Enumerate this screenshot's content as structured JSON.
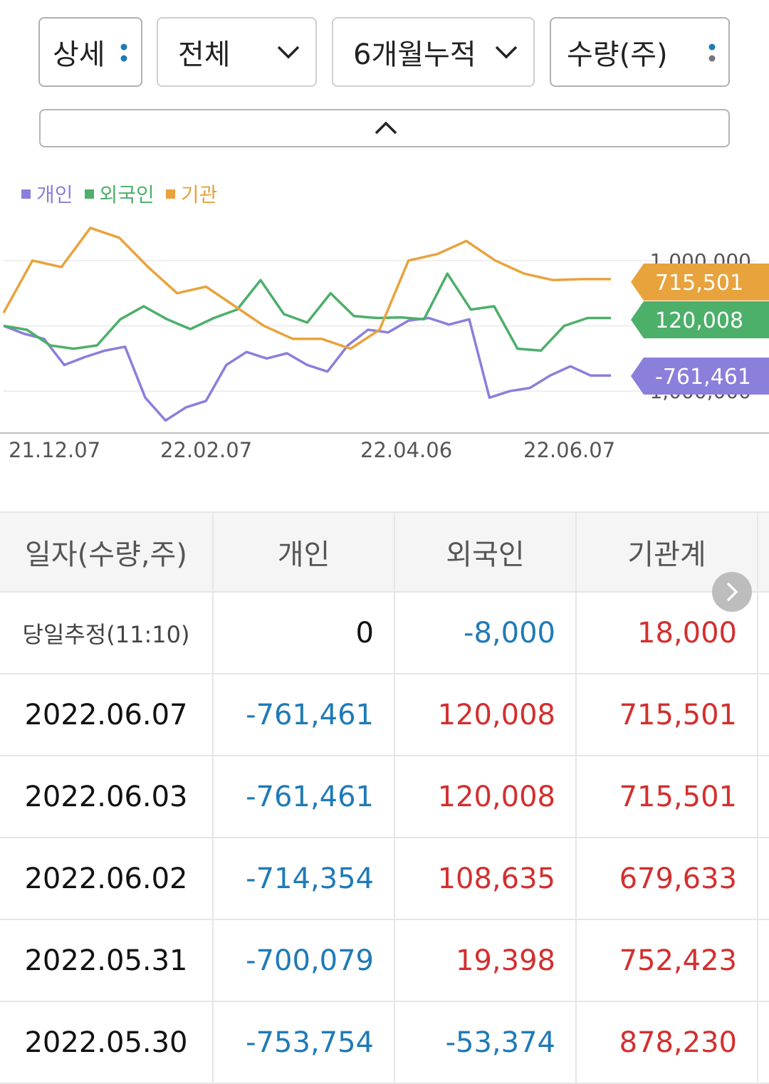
{
  "filters": {
    "detail": {
      "label": "상세",
      "icon": "dots-vertical-icon"
    },
    "scope": {
      "label": "전체",
      "icon": "chevron-down-icon"
    },
    "period": {
      "label": "6개월누적",
      "icon": "chevron-down-icon"
    },
    "unit": {
      "label": "수량(주)",
      "icon": "dots-vertical-icon"
    },
    "collapse_icon": "chevron-up-icon"
  },
  "colors": {
    "individual": "#8a7fdb",
    "foreign": "#4caf6a",
    "institution": "#e8a33d",
    "positive": "#d32f2f",
    "negative": "#1f7ab8",
    "neutral": "#111111"
  },
  "chart_data": {
    "type": "line",
    "title": "",
    "xlabel": "",
    "ylabel": "",
    "x_ticks": [
      "21.12.07",
      "22.02.07",
      "22.04.06",
      "22.06.07"
    ],
    "y_ticks": [
      "1,000,000",
      "-1,000,000"
    ],
    "ylim": [
      -1500000,
      1500000
    ],
    "legend_position": "top-left",
    "series": [
      {
        "name": "개인",
        "color": "#8a7fdb",
        "values": [
          0,
          -120000,
          -200000,
          -600000,
          -480000,
          -380000,
          -320000,
          -1100000,
          -1450000,
          -1250000,
          -1150000,
          -600000,
          -400000,
          -500000,
          -420000,
          -600000,
          -700000,
          -300000,
          -60000,
          -100000,
          80000,
          120000,
          20000,
          100000,
          -1100000,
          -1000000,
          -950000,
          -760000,
          -620000,
          -761461,
          -761461
        ]
      },
      {
        "name": "외국인",
        "color": "#4caf6a",
        "values": [
          0,
          -60000,
          -300000,
          -350000,
          -300000,
          100000,
          300000,
          100000,
          -50000,
          120000,
          250000,
          700000,
          180000,
          50000,
          500000,
          150000,
          120000,
          130000,
          100000,
          800000,
          250000,
          300000,
          -350000,
          -380000,
          0,
          120008,
          120008
        ]
      },
      {
        "name": "기관",
        "color": "#e8a33d",
        "values": [
          200000,
          1000000,
          900000,
          1500000,
          1350000,
          900000,
          500000,
          600000,
          300000,
          0,
          -200000,
          -200000,
          -350000,
          -60000,
          1000000,
          1100000,
          1300000,
          1000000,
          800000,
          700000,
          715501,
          715501
        ]
      }
    ],
    "end_labels": [
      {
        "series": "기관",
        "value": "715,501"
      },
      {
        "series": "외국인",
        "value": "120,008"
      },
      {
        "series": "개인",
        "value": "-761,461"
      }
    ]
  },
  "table": {
    "headers": [
      "일자(수량,주)",
      "개인",
      "외국인",
      "기관계"
    ],
    "rows": [
      {
        "date": "당일추정(11:10)",
        "individual": "0",
        "foreign": "-8,000",
        "institution": "18,000",
        "estimate": true
      },
      {
        "date": "2022.06.07",
        "individual": "-761,461",
        "foreign": "120,008",
        "institution": "715,501"
      },
      {
        "date": "2022.06.03",
        "individual": "-761,461",
        "foreign": "120,008",
        "institution": "715,501"
      },
      {
        "date": "2022.06.02",
        "individual": "-714,354",
        "foreign": "108,635",
        "institution": "679,633"
      },
      {
        "date": "2022.05.31",
        "individual": "-700,079",
        "foreign": "19,398",
        "institution": "752,423"
      },
      {
        "date": "2022.05.30",
        "individual": "-753,754",
        "foreign": "-53,374",
        "institution": "878,230"
      }
    ],
    "scroll_icon": "chevron-right-icon"
  }
}
